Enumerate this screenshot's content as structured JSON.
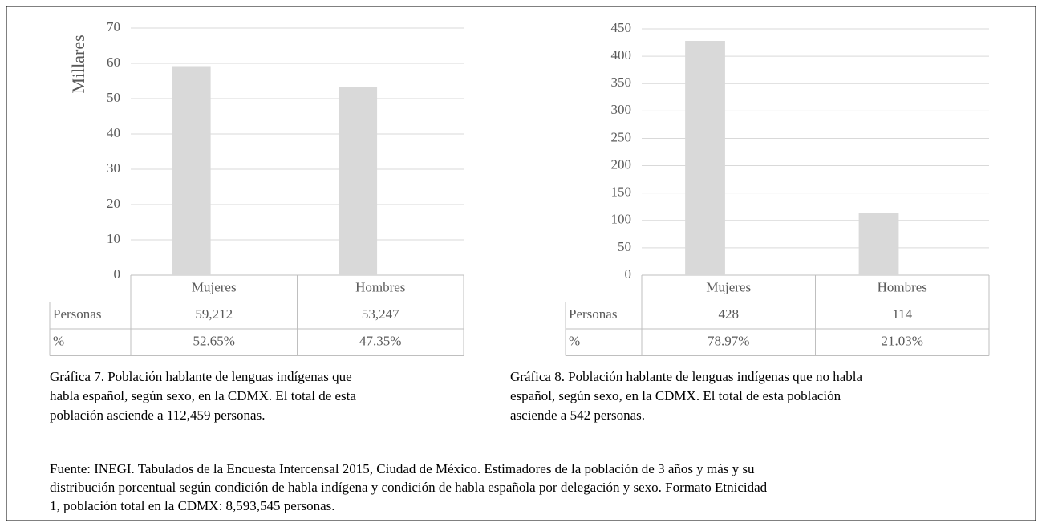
{
  "chart_data": [
    {
      "type": "bar",
      "ylabel": "Millares",
      "categories": [
        "Mujeres",
        "Hombres"
      ],
      "values": [
        59.212,
        53.247
      ],
      "value_labels": [
        "59,212",
        "53,247"
      ],
      "color": "#d9d9d9",
      "ylim": [
        0,
        70
      ],
      "yticks": [
        0,
        10,
        20,
        30,
        40,
        50,
        60,
        70
      ],
      "grid": true,
      "row_labels": [
        "Personas",
        "%"
      ],
      "percent_labels": [
        "52.65%",
        "47.35%"
      ]
    },
    {
      "type": "bar",
      "categories": [
        "Mujeres",
        "Hombres"
      ],
      "values": [
        428,
        114
      ],
      "value_labels": [
        "428",
        "114"
      ],
      "color": "#d9d9d9",
      "ylim": [
        0,
        450
      ],
      "yticks": [
        0,
        50,
        100,
        150,
        200,
        250,
        300,
        350,
        400,
        450
      ],
      "grid": true,
      "row_labels": [
        "Personas",
        "%"
      ],
      "percent_labels": [
        "78.97%",
        "21.03%"
      ]
    }
  ],
  "captions": [
    [
      "Gráfica 7. Población hablante de lenguas indígenas que",
      "habla español, según sexo, en la CDMX. El total de esta",
      "población asciende a 112,459 personas."
    ],
    [
      "Gráfica 8. Población hablante de lenguas indígenas que no habla",
      "español, según sexo, en la CDMX. El total de esta población",
      "asciende a 542 personas."
    ]
  ],
  "source": [
    "Fuente: INEGI. Tabulados de la Encuesta Intercensal 2015, Ciudad de México. Estimadores de la población de 3 años y más y su",
    "distribución porcentual según condición de habla indígena y condición de habla española por delegación y sexo. Formato Etnicidad",
    "1, población total en la CDMX: 8,593,545 personas."
  ]
}
